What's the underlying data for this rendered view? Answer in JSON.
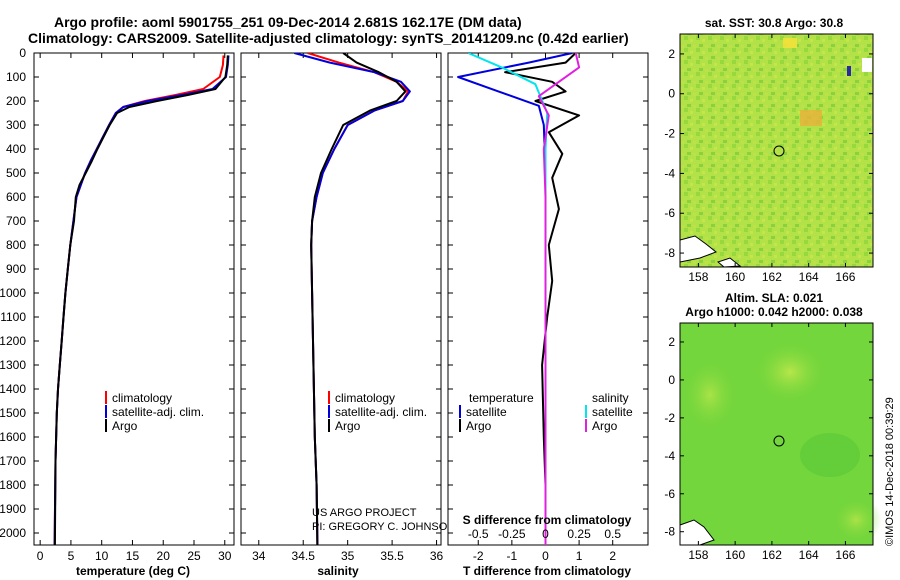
{
  "title": {
    "line1": "Argo profile: aoml 5901755_251 09-Dec-2014 2.681S 162.17E (DM data)",
    "line2": "Climatology: CARS2009. Satellite-adjusted climatology: synTS_20141209.nc (0.42d earlier)"
  },
  "colors": {
    "climatology": "#ff0000",
    "satellite": "#0000dd",
    "argo": "#000000",
    "salinity_satellite": "#00e5ee",
    "salinity_argo": "#e020e0"
  },
  "depth_ticks": [
    "0",
    "100",
    "200",
    "300",
    "400",
    "500",
    "600",
    "700",
    "800",
    "900",
    "1000",
    "1100",
    "1200",
    "1300",
    "1400",
    "1500",
    "1600",
    "1700",
    "1800",
    "1900",
    "2000"
  ],
  "panel_temp": {
    "xlabel": "temperature (deg C)",
    "xticks": [
      "0",
      "5",
      "10",
      "15",
      "20",
      "25",
      "30"
    ],
    "legend": [
      "climatology",
      "satellite-adj. clim.",
      "Argo"
    ]
  },
  "panel_sal": {
    "xlabel": "salinity",
    "xticks": [
      "34",
      "34.5",
      "35",
      "35.5",
      "36"
    ],
    "legend": [
      "climatology",
      "satellite-adj. clim.",
      "Argo"
    ],
    "credit1": "US ARGO PROJECT",
    "credit2": "PI: GREGORY C. JOHNSON"
  },
  "panel_diff": {
    "xlabel": "T difference from climatology",
    "xlabel_top": "S difference from climatology",
    "xticks_bottom": [
      "-2",
      "-1",
      "0",
      "1",
      "2"
    ],
    "xticks_top": [
      "-0.5",
      "-0.25",
      "0",
      "0.25",
      "0.5"
    ],
    "legend_left_title": "temperature",
    "legend_right_title": "salinity",
    "legend_items": [
      "satellite",
      "Argo"
    ]
  },
  "map_sst": {
    "title": "sat. SST: 30.8 Argo: 30.8",
    "xticks": [
      "158",
      "160",
      "162",
      "164",
      "166"
    ],
    "yticks": [
      "2",
      "0",
      "-2",
      "-4",
      "-6",
      "-8"
    ]
  },
  "map_sla": {
    "title1": "Altim. SLA: 0.021",
    "title2": "Argo h1000: 0.042 h2000: 0.038",
    "xticks": [
      "158",
      "160",
      "162",
      "164",
      "166"
    ],
    "yticks": [
      "2",
      "0",
      "-2",
      "-4",
      "-6",
      "-8"
    ]
  },
  "watermark": "©IMOS 14-Dec-2018 00:39:29",
  "chart_data": [
    {
      "type": "line",
      "name": "temperature profile",
      "xlabel": "temperature (deg C)",
      "ylabel": "depth",
      "xlim": [
        -1,
        31.5
      ],
      "ylim": [
        2050,
        0
      ],
      "series": [
        {
          "name": "climatology",
          "x": [
            29.8,
            29.7,
            29.2,
            26.5,
            22,
            17,
            13.5,
            12.3,
            11.2,
            10.2,
            9.2,
            8.2,
            7.3,
            6.6,
            5.9,
            5.4,
            4.9,
            4.5,
            4.1,
            3.8,
            3.5,
            3.2,
            2.9,
            2.7,
            2.5,
            2.35
          ],
          "y": [
            10,
            50,
            100,
            150,
            175,
            200,
            225,
            250,
            300,
            350,
            400,
            450,
            500,
            550,
            600,
            700,
            800,
            900,
            1000,
            1100,
            1200,
            1300,
            1400,
            1500,
            1700,
            2050
          ]
        },
        {
          "name": "satellite-adj. clim.",
          "x": [
            30.6,
            30.5,
            30.2,
            28,
            23,
            17.5,
            13.5,
            12.3,
            11.2,
            10.2,
            9.2,
            8.2,
            7.3,
            6.6,
            5.9,
            5.4,
            4.9,
            4.5,
            4.1,
            3.8,
            3.5,
            3.2,
            2.9,
            2.7,
            2.5,
            2.35
          ],
          "y": [
            10,
            50,
            100,
            150,
            175,
            200,
            225,
            250,
            300,
            350,
            400,
            450,
            500,
            550,
            600,
            700,
            800,
            900,
            1000,
            1100,
            1200,
            1300,
            1400,
            1500,
            1700,
            2050
          ]
        },
        {
          "name": "Argo",
          "x": [
            30.5,
            30.4,
            30.1,
            28.5,
            24,
            19,
            14.5,
            12.5,
            11.3,
            10.3,
            9.3,
            8.4,
            7.4,
            6.4,
            5.8,
            5.5,
            4.9,
            4.5,
            4.1,
            3.8,
            3.5,
            3.2,
            2.9,
            2.7,
            2.5,
            2.4
          ],
          "y": [
            10,
            50,
            100,
            150,
            175,
            200,
            225,
            250,
            300,
            350,
            400,
            450,
            500,
            550,
            600,
            700,
            800,
            900,
            1000,
            1100,
            1200,
            1300,
            1400,
            1500,
            1700,
            2050
          ]
        }
      ]
    },
    {
      "type": "line",
      "name": "salinity profile",
      "xlabel": "salinity",
      "ylabel": "depth",
      "xlim": [
        33.8,
        36.05
      ],
      "ylim": [
        2050,
        0
      ],
      "series": [
        {
          "name": "climatology",
          "x": [
            34.55,
            34.9,
            35.3,
            35.55,
            35.68,
            35.62,
            35.3,
            35.0,
            34.85,
            34.72,
            34.65,
            34.6,
            34.59,
            34.6,
            34.61,
            34.62,
            34.63,
            34.65,
            34.66
          ],
          "y": [
            0,
            40,
            80,
            120,
            160,
            200,
            240,
            300,
            400,
            500,
            600,
            700,
            800,
            1000,
            1200,
            1400,
            1600,
            1800,
            2050
          ]
        },
        {
          "name": "satellite-adj. clim.",
          "x": [
            34.4,
            34.8,
            35.3,
            35.6,
            35.7,
            35.62,
            35.3,
            35.0,
            34.85,
            34.72,
            34.65,
            34.6,
            34.59,
            34.6,
            34.61,
            34.62,
            34.63,
            34.65,
            34.66
          ],
          "y": [
            0,
            40,
            80,
            120,
            160,
            200,
            240,
            300,
            400,
            500,
            600,
            700,
            800,
            1000,
            1200,
            1400,
            1600,
            1800,
            2050
          ]
        },
        {
          "name": "Argo",
          "x": [
            34.95,
            35.1,
            35.35,
            35.55,
            35.65,
            35.55,
            35.25,
            34.95,
            34.82,
            34.7,
            34.63,
            34.6,
            34.59,
            34.6,
            34.61,
            34.62,
            34.63,
            34.65,
            34.66
          ],
          "y": [
            0,
            40,
            80,
            120,
            160,
            200,
            240,
            300,
            400,
            500,
            600,
            700,
            800,
            1000,
            1200,
            1400,
            1600,
            1800,
            2050
          ]
        }
      ]
    },
    {
      "type": "line",
      "name": "difference from climatology",
      "xlabel": "T difference from climatology",
      "xlabel_top": "S difference from climatology",
      "xlim": [
        -2.9,
        3.05
      ],
      "ylim": [
        2050,
        0
      ],
      "series": [
        {
          "name": "temperature satellite",
          "x": [
            0.8,
            -0.5,
            -2.6,
            -1.4,
            -0.2,
            -0.05,
            0,
            0,
            0,
            0
          ],
          "y": [
            0,
            40,
            100,
            160,
            220,
            300,
            500,
            1000,
            1500,
            2050
          ]
        },
        {
          "name": "temperature Argo",
          "x": [
            0.9,
            0.6,
            -1.2,
            0.2,
            0.6,
            -0.3,
            1.0,
            0.1,
            0.5,
            0.2,
            0.4,
            0.1,
            0.2,
            0.05,
            -0.1,
            -0.05,
            0,
            0
          ],
          "y": [
            0,
            40,
            80,
            120,
            160,
            200,
            260,
            330,
            420,
            520,
            650,
            800,
            950,
            1100,
            1300,
            1600,
            1800,
            2050
          ]
        },
        {
          "name": "salinity satellite",
          "x": [
            -2.3,
            -1.3,
            -0.3,
            0.05,
            0,
            0,
            0
          ],
          "y": [
            0,
            60,
            130,
            250,
            400,
            1000,
            2050
          ]
        },
        {
          "name": "salinity Argo",
          "x": [
            0.9,
            1.0,
            0.4,
            -0.2,
            0.1,
            -0.05,
            0,
            0
          ],
          "y": [
            0,
            60,
            120,
            180,
            260,
            400,
            600,
            2050
          ]
        }
      ]
    },
    {
      "type": "heatmap",
      "name": "sat. SST map",
      "title": "sat. SST: 30.8 Argo: 30.8",
      "xlim": [
        157,
        167.5
      ],
      "ylim": [
        -8.7,
        3
      ],
      "argo_position": {
        "lon": 162.17,
        "lat": -2.681
      }
    },
    {
      "type": "heatmap",
      "name": "altimetry SLA map",
      "title": "Altim. SLA: 0.021",
      "xlim": [
        157,
        167.5
      ],
      "ylim": [
        -8.7,
        3
      ],
      "argo_position": {
        "lon": 162.17,
        "lat": -2.681
      }
    }
  ]
}
